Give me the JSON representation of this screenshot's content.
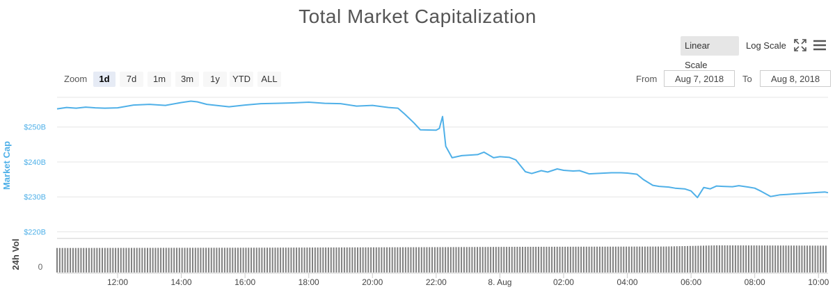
{
  "chart_data": {
    "type": "line",
    "title": "Total Market Capitalization",
    "ylabel_top": "Market Cap",
    "ylabel_bottom": "24h Vol",
    "y_axis_unit_suffix": "B",
    "y_ticks": [
      "$220B",
      "$230B",
      "$240B",
      "$250B"
    ],
    "y_tick_values": [
      220,
      230,
      240,
      250
    ],
    "ylim": [
      218.7,
      258.9
    ],
    "volume_tick_label": "0",
    "x_ticks": [
      "12:00",
      "14:00",
      "16:00",
      "18:00",
      "20:00",
      "22:00",
      "8. Aug",
      "02:00",
      "04:00",
      "06:00",
      "08:00",
      "10:00"
    ],
    "x_tick_hours": [
      12,
      14,
      16,
      18,
      20,
      22,
      24,
      26,
      28,
      30,
      32,
      34
    ],
    "xlim_hours": [
      10.1,
      34.3
    ],
    "series": [
      {
        "name": "Market Cap",
        "color": "#4fb0e8",
        "x_hours": [
          10.1,
          10.4,
          10.7,
          11.0,
          11.3,
          11.6,
          12.0,
          12.5,
          13.0,
          13.5,
          14.0,
          14.3,
          14.5,
          14.8,
          15.0,
          15.5,
          16.0,
          16.5,
          17.0,
          17.5,
          18.0,
          18.5,
          19.0,
          19.5,
          20.0,
          20.5,
          20.8,
          21.0,
          21.3,
          21.5,
          22.0,
          22.1,
          22.2,
          22.3,
          22.5,
          22.8,
          23.3,
          23.5,
          23.8,
          24.0,
          24.3,
          24.5,
          24.8,
          25.0,
          25.3,
          25.5,
          25.8,
          26.0,
          26.3,
          26.5,
          26.8,
          27.0,
          27.5,
          27.8,
          28.0,
          28.3,
          28.5,
          28.8,
          29.0,
          29.3,
          29.5,
          29.8,
          30.0,
          30.2,
          30.4,
          30.6,
          30.8,
          31.0,
          31.3,
          31.5,
          31.8,
          32.0,
          32.2,
          32.5,
          32.8,
          33.0,
          33.3,
          33.5,
          34.0,
          34.2,
          34.3
        ],
        "values": [
          255.2,
          255.6,
          255.4,
          255.7,
          255.5,
          255.4,
          255.5,
          256.3,
          256.5,
          256.2,
          257.0,
          257.4,
          257.2,
          256.5,
          256.3,
          255.8,
          256.3,
          256.7,
          256.8,
          256.9,
          257.1,
          256.8,
          256.7,
          256.0,
          256.2,
          255.6,
          255.4,
          253.8,
          251.2,
          249.2,
          249.1,
          249.6,
          253.0,
          244.5,
          241.2,
          241.8,
          242.1,
          242.8,
          241.2,
          241.5,
          241.3,
          240.6,
          237.2,
          236.7,
          237.5,
          237.1,
          238.0,
          237.6,
          237.4,
          237.5,
          236.6,
          236.7,
          236.9,
          236.9,
          236.8,
          236.5,
          235.0,
          233.3,
          233.0,
          232.8,
          232.5,
          232.3,
          231.7,
          229.8,
          232.7,
          232.3,
          233.1,
          233.0,
          232.9,
          233.2,
          232.8,
          232.5,
          231.6,
          230.1,
          230.6,
          230.7,
          230.9,
          231.0,
          231.3,
          231.4,
          231.2
        ]
      },
      {
        "name": "24h Vol",
        "color": "#7f7f7f",
        "note": "relative bar heights",
        "x_hours": [
          10.1,
          16.4,
          22.3,
          24.5,
          29.2,
          30.8,
          34.3
        ],
        "values": [
          0.84,
          0.85,
          0.87,
          0.88,
          0.89,
          0.93,
          0.92
        ]
      }
    ],
    "grid": true
  },
  "ui": {
    "scale_linear_label": "Linear Scale",
    "scale_log_label": "Log Scale",
    "fullscreen_icon": "fullscreen-icon",
    "menu_icon": "menu-icon",
    "zoom_label": "Zoom",
    "zoom_buttons": [
      "1d",
      "7d",
      "1m",
      "3m",
      "1y",
      "YTD",
      "ALL"
    ],
    "zoom_active": "1d",
    "from_label": "From",
    "from_value": "Aug 7, 2018",
    "to_label": "To",
    "to_value": "Aug 8, 2018"
  },
  "colors": {
    "line": "#4fb0e8",
    "volume": "#7f7f7f",
    "axis_label_top": "#4fb0e8",
    "grid": "#e6e6e6"
  }
}
